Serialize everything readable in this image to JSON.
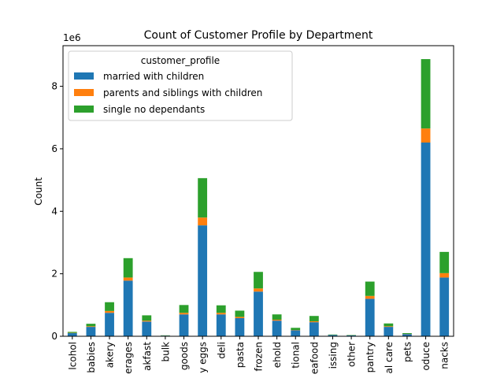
{
  "chart_data": {
    "type": "bar",
    "stacked": true,
    "title": "Count of Customer Profile by Department",
    "xlabel": "",
    "ylabel": "Count",
    "y_offset_label": "1e6",
    "ylim": [
      0,
      9.3
    ],
    "yticks": [
      0,
      2,
      4,
      6,
      8
    ],
    "legend": {
      "title": "customer_profile",
      "placement": "top-left"
    },
    "categories": [
      "lcohol",
      "babies",
      "akery",
      "erages",
      "akfast",
      "bulk",
      "goods",
      "y eggs",
      "deli",
      "pasta",
      "frozen",
      "ehold",
      "tional",
      "eafood",
      "issing",
      "other",
      "pantry",
      "al care",
      "pets",
      "oduce",
      "nacks"
    ],
    "series": [
      {
        "name": "married with children",
        "color": "#1f77b4",
        "values": [
          0.1,
          0.3,
          0.75,
          1.78,
          0.47,
          0.02,
          0.7,
          3.55,
          0.7,
          0.58,
          1.43,
          0.5,
          0.19,
          0.45,
          0.04,
          0.03,
          1.2,
          0.3,
          0.07,
          6.2,
          1.88
        ]
      },
      {
        "name": "parents and siblings with children",
        "color": "#ff7f0e",
        "values": [
          0.01,
          0.02,
          0.06,
          0.1,
          0.03,
          0.001,
          0.05,
          0.25,
          0.05,
          0.04,
          0.1,
          0.03,
          0.01,
          0.03,
          0.003,
          0.002,
          0.09,
          0.02,
          0.005,
          0.45,
          0.14
        ]
      },
      {
        "name": "single no dependants",
        "color": "#2ca02c",
        "values": [
          0.03,
          0.08,
          0.28,
          0.62,
          0.17,
          0.009,
          0.25,
          1.26,
          0.24,
          0.2,
          0.53,
          0.17,
          0.07,
          0.17,
          0.013,
          0.01,
          0.46,
          0.09,
          0.025,
          2.22,
          0.68
        ]
      }
    ]
  }
}
